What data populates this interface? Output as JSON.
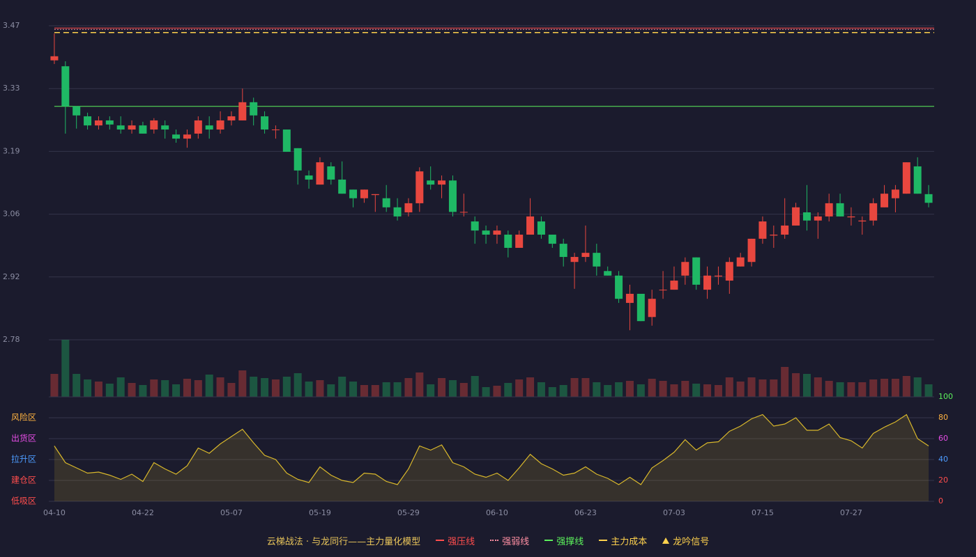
{
  "chart_data": [
    {
      "type": "candlestick",
      "categories": [
        "04-10",
        null,
        null,
        null,
        null,
        null,
        null,
        null,
        "04-22",
        null,
        null,
        null,
        null,
        null,
        null,
        null,
        "05-07",
        null,
        null,
        null,
        null,
        null,
        null,
        null,
        "05-19",
        null,
        null,
        null,
        null,
        null,
        null,
        null,
        "05-29",
        null,
        null,
        null,
        null,
        null,
        null,
        null,
        "06-10",
        null,
        null,
        null,
        null,
        null,
        null,
        null,
        "06-23",
        null,
        null,
        null,
        null,
        null,
        null,
        null,
        "07-03",
        null,
        null,
        null,
        null,
        null,
        null,
        null,
        "07-15",
        null,
        null,
        null,
        null,
        null,
        null,
        null,
        "07-27",
        null,
        null,
        null,
        null,
        null,
        null,
        null
      ],
      "open": [
        3.394,
        3.381,
        3.293,
        3.271,
        3.251,
        3.262,
        3.251,
        3.242,
        3.251,
        3.242,
        3.251,
        3.231,
        3.222,
        3.233,
        3.251,
        3.242,
        3.262,
        3.262,
        3.302,
        3.271,
        3.241,
        3.242,
        3.201,
        3.141,
        3.121,
        3.161,
        3.132,
        3.11,
        3.091,
        3.098,
        3.091,
        3.071,
        3.06,
        3.08,
        3.13,
        3.121,
        3.13,
        3.06,
        3.04,
        3.02,
        3.011,
        3.011,
        2.982,
        3.011,
        3.04,
        3.011,
        2.991,
        2.951,
        2.962,
        2.971,
        2.931,
        2.921,
        2.861,
        2.881,
        2.83,
        2.889,
        2.89,
        2.921,
        2.961,
        2.89,
        2.919,
        2.91,
        2.941,
        2.951,
        3.002,
        3.009,
        3.011,
        3.031,
        3.06,
        3.042,
        3.051,
        3.08,
        3.049,
        3.04,
        3.042,
        3.071,
        3.091,
        3.101,
        3.161,
        3.1
      ],
      "high": [
        3.453,
        3.392,
        3.293,
        3.279,
        3.271,
        3.271,
        3.271,
        3.262,
        3.259,
        3.267,
        3.262,
        3.242,
        3.242,
        3.271,
        3.271,
        3.282,
        3.282,
        3.332,
        3.312,
        3.282,
        3.251,
        3.242,
        3.201,
        3.152,
        3.181,
        3.17,
        3.172,
        3.11,
        3.11,
        3.1,
        3.12,
        3.091,
        3.091,
        3.159,
        3.161,
        3.141,
        3.141,
        3.101,
        3.051,
        3.031,
        3.031,
        3.02,
        3.02,
        3.091,
        3.051,
        3.011,
        3.002,
        2.971,
        3.031,
        2.991,
        2.941,
        2.931,
        2.901,
        2.881,
        2.89,
        2.931,
        2.941,
        2.961,
        2.961,
        2.941,
        2.941,
        2.961,
        2.971,
        3.002,
        3.051,
        3.031,
        3.091,
        3.081,
        3.12,
        3.06,
        3.101,
        3.101,
        3.071,
        3.051,
        3.091,
        3.12,
        3.12,
        3.17,
        3.181,
        3.12
      ],
      "low": [
        3.386,
        3.233,
        3.244,
        3.242,
        3.242,
        3.242,
        3.233,
        3.233,
        3.233,
        3.233,
        3.222,
        3.213,
        3.202,
        3.222,
        3.222,
        3.233,
        3.251,
        3.262,
        3.251,
        3.233,
        3.222,
        3.193,
        3.121,
        3.112,
        3.121,
        3.121,
        3.101,
        3.071,
        3.081,
        3.061,
        3.061,
        3.042,
        3.051,
        3.061,
        3.11,
        3.091,
        3.051,
        3.051,
        2.991,
        2.991,
        2.991,
        2.961,
        2.982,
        3.011,
        3.002,
        2.982,
        2.941,
        2.892,
        2.951,
        2.921,
        2.921,
        2.861,
        2.801,
        2.821,
        2.811,
        2.87,
        2.89,
        2.901,
        2.89,
        2.87,
        2.901,
        2.881,
        2.941,
        2.941,
        2.991,
        2.982,
        3.002,
        3.031,
        3.02,
        3.002,
        3.04,
        3.051,
        3.031,
        3.011,
        3.031,
        3.071,
        3.06,
        3.101,
        3.101,
        3.071
      ],
      "close": [
        3.403,
        3.293,
        3.273,
        3.251,
        3.262,
        3.253,
        3.242,
        3.251,
        3.233,
        3.262,
        3.242,
        3.222,
        3.231,
        3.262,
        3.242,
        3.262,
        3.271,
        3.302,
        3.273,
        3.242,
        3.242,
        3.193,
        3.152,
        3.132,
        3.17,
        3.132,
        3.101,
        3.091,
        3.11,
        3.1,
        3.071,
        3.051,
        3.08,
        3.15,
        3.121,
        3.13,
        3.061,
        3.061,
        3.02,
        3.011,
        3.02,
        2.982,
        3.011,
        3.051,
        3.011,
        2.991,
        2.962,
        2.962,
        2.971,
        2.941,
        2.921,
        2.87,
        2.881,
        2.821,
        2.87,
        2.89,
        2.91,
        2.951,
        2.901,
        2.921,
        2.921,
        2.951,
        2.961,
        3.002,
        3.04,
        3.011,
        3.031,
        3.071,
        3.042,
        3.051,
        3.08,
        3.051,
        3.051,
        3.042,
        3.08,
        3.101,
        3.11,
        3.17,
        3.101,
        3.081
      ],
      "volume": [
        33,
        82,
        33,
        25,
        22,
        19,
        28,
        20,
        17,
        25,
        24,
        18,
        26,
        24,
        32,
        28,
        20,
        38,
        29,
        27,
        25,
        29,
        34,
        22,
        24,
        18,
        29,
        22,
        17,
        17,
        21,
        21,
        27,
        35,
        18,
        27,
        24,
        20,
        30,
        14,
        16,
        20,
        25,
        28,
        21,
        14,
        17,
        27,
        27,
        21,
        17,
        21,
        23,
        18,
        26,
        23,
        18,
        23,
        19,
        18,
        17,
        28,
        22,
        28,
        25,
        25,
        43,
        34,
        33,
        28,
        23,
        21,
        21,
        21,
        25,
        26,
        26,
        30,
        28,
        18
      ],
      "up_color": "#e8473f",
      "down_color": "#1fb865",
      "ylim": [
        2.78,
        3.47
      ],
      "yticks": [
        {
          "value": 2.78,
          "label": "2.78"
        },
        {
          "value": 2.918,
          "label": "2.92"
        },
        {
          "value": 3.056,
          "label": "3.06"
        },
        {
          "value": 3.194,
          "label": "3.19"
        },
        {
          "value": 3.332,
          "label": "3.33"
        },
        3.47
      ],
      "grid": true,
      "legend_title": "云梯战法 · 与龙同行——主力量化模型",
      "levels": [
        {
          "name": "强压线",
          "color": "#ff4d4d",
          "style": "solid",
          "value": 3.465
        },
        {
          "name": "强弱线",
          "color": "#ff8fa3",
          "style": "dotted",
          "value": 3.462
        },
        {
          "name": "强撑线",
          "color": "#5cf25c",
          "style": "solid",
          "value": 3.293
        },
        {
          "name": "主力成本",
          "color": "#ffd24d",
          "style": "dashed",
          "value": 3.455
        }
      ],
      "signal": {
        "name": "龙吟信号",
        "color": "#ffd24d"
      }
    },
    {
      "type": "line",
      "area": true,
      "color": "#d9b82b",
      "values": [
        53,
        37,
        32,
        27,
        28,
        25,
        21,
        26,
        19,
        37,
        31,
        26,
        34,
        51,
        46,
        55,
        62,
        69,
        56,
        44,
        40,
        27,
        21,
        18,
        33,
        25,
        20,
        18,
        27,
        26,
        19,
        16,
        31,
        53,
        49,
        54,
        37,
        33,
        26,
        23,
        27,
        20,
        32,
        45,
        36,
        31,
        25,
        27,
        33,
        26,
        22,
        16,
        23,
        16,
        32,
        39,
        47,
        59,
        49,
        56,
        57,
        67,
        72,
        79,
        83,
        72,
        74,
        80,
        68,
        68,
        74,
        61,
        58,
        51,
        65,
        71,
        76,
        83,
        60,
        53
      ],
      "y2lim": [
        0,
        100
      ],
      "y2ticks": [
        0,
        20,
        40,
        60,
        80,
        100
      ],
      "y2tick_colors": [
        "#ff4d4d",
        "#ff4d4d",
        "#4d9cff",
        "#e54de5",
        "#ffb340",
        "#5cf25c"
      ],
      "zones": [
        {
          "label": "风险区",
          "value": 80,
          "color": "#ffb340"
        },
        {
          "label": "出货区",
          "value": 60,
          "color": "#e54de5"
        },
        {
          "label": "拉升区",
          "value": 40,
          "color": "#4d9cff"
        },
        {
          "label": "建仓区",
          "value": 20,
          "color": "#ff4d4d"
        },
        {
          "label": "低吸区",
          "value": 0,
          "color": "#ff4d4d"
        }
      ]
    }
  ]
}
